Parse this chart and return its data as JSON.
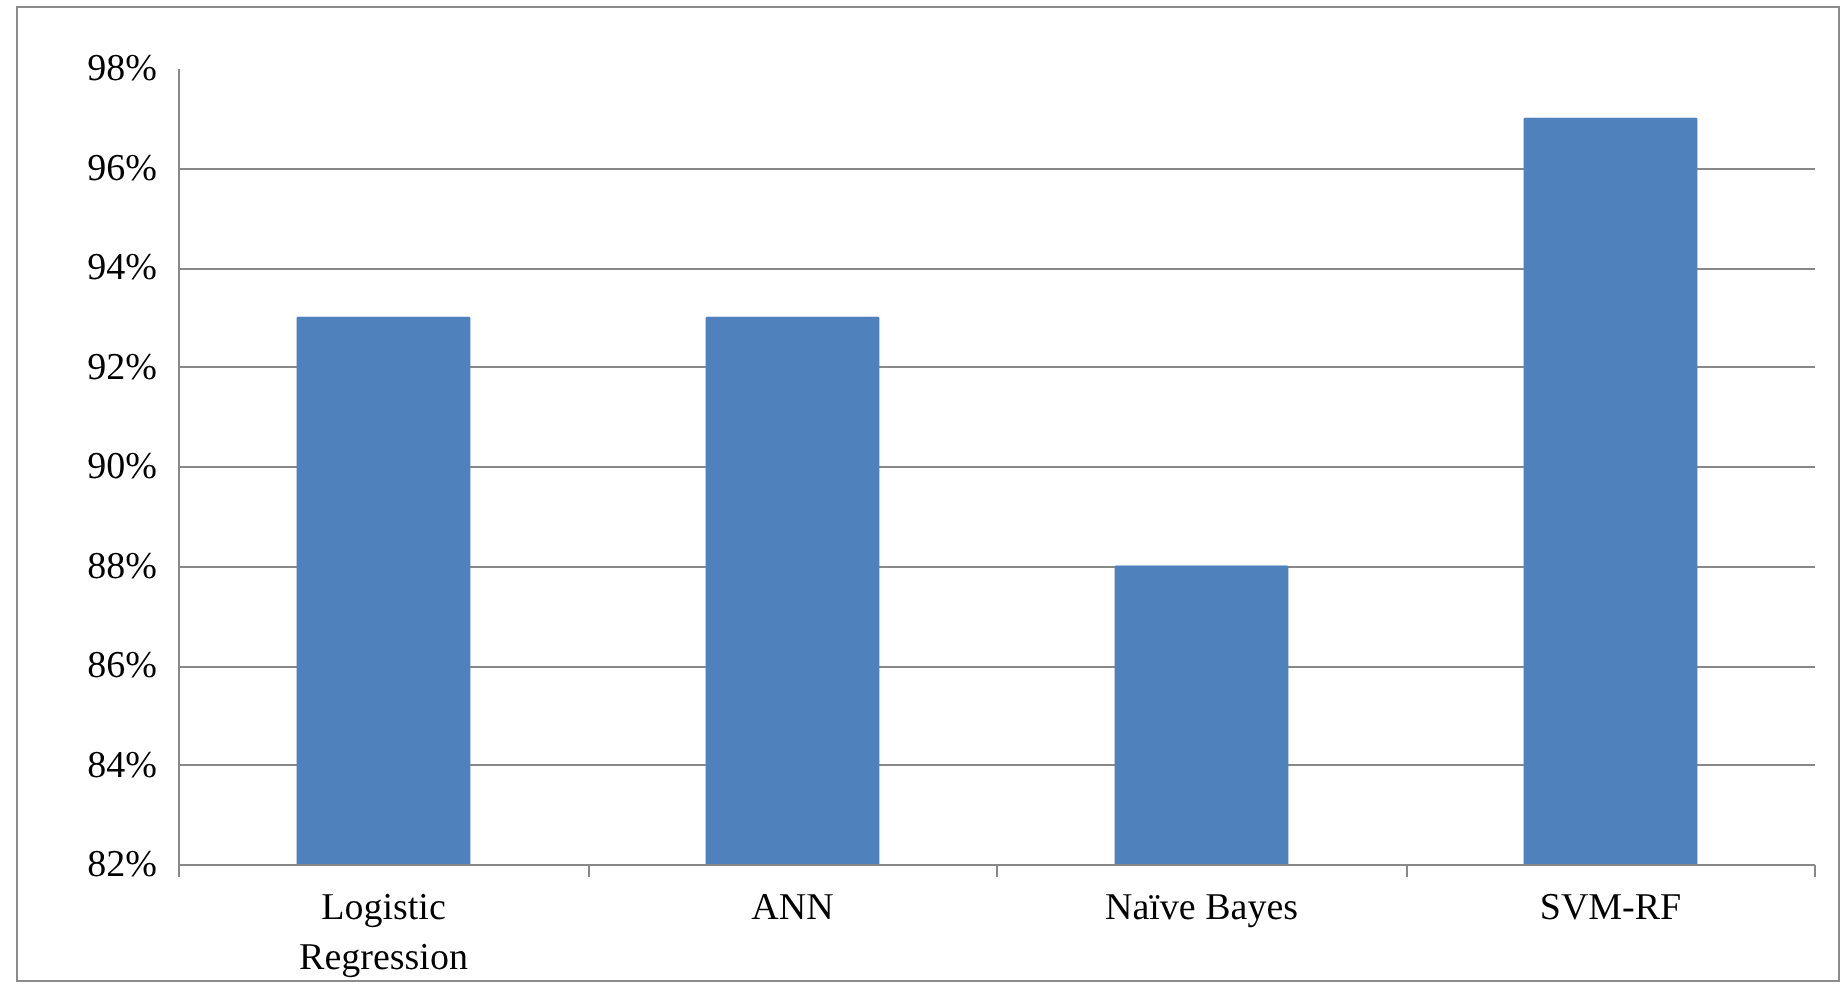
{
  "chart_data": {
    "type": "bar",
    "categories": [
      "Logistic Regression",
      "ANN",
      "Naïve Bayes",
      "SVM-RF"
    ],
    "values": [
      93,
      93,
      88,
      97
    ],
    "color": "#4f81bd",
    "ylim": [
      82,
      98
    ],
    "yticks": [
      {
        "value": 82,
        "label": "82%"
      },
      {
        "value": 84,
        "label": "84%"
      },
      {
        "value": 86,
        "label": "86%"
      },
      {
        "value": 88,
        "label": "88%"
      },
      {
        "value": 90,
        "label": "90%"
      },
      {
        "value": 92,
        "label": "92%"
      },
      {
        "value": 94,
        "label": "94%"
      },
      {
        "value": 96,
        "label": "96%"
      },
      {
        "value": 98,
        "label": "98%"
      }
    ],
    "grid": "y"
  }
}
